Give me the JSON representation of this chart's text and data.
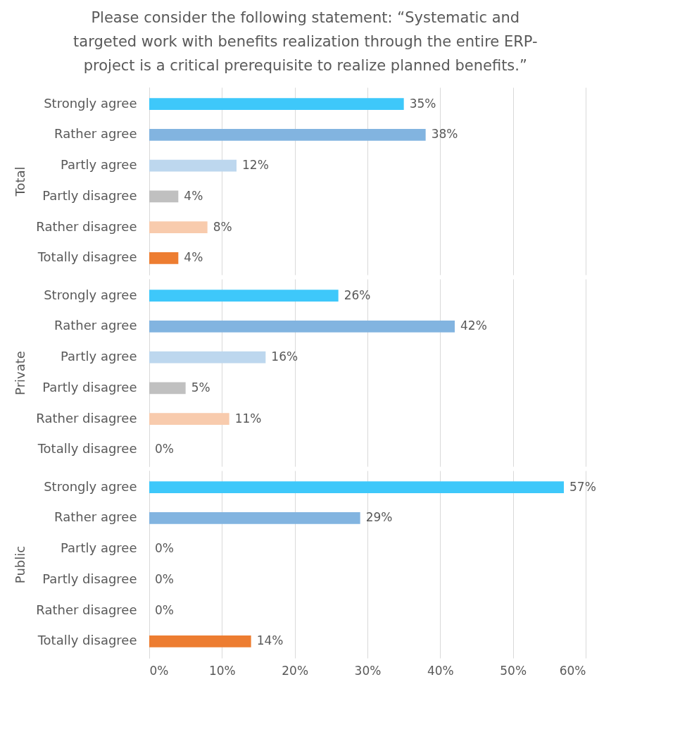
{
  "chart_data": [
    {
      "type": "bar",
      "orientation": "horizontal",
      "title": "Please consider the following statement: “Systematic and targeted work with benefits realization through the entire ERP-project is a critical prerequisite to realize planned benefits.”",
      "ylabel": "Total",
      "categories": [
        "Strongly agree",
        "Rather agree",
        "Partly agree",
        "Partly disagree",
        "Rather disagree",
        "Totally disagree"
      ],
      "values": [
        35,
        38,
        12,
        4,
        8,
        4
      ],
      "value_labels": [
        "35%",
        "38%",
        "12%",
        "4%",
        "8%",
        "4%"
      ],
      "colors": [
        "#3ec8fa",
        "#82b4e0",
        "#bdd7ee",
        "#c0c0c0",
        "#f8cbad",
        "#ed7d31"
      ],
      "xlim": [
        0,
        60
      ],
      "xticks": [
        {
          "value": 0,
          "label": null
        },
        {
          "value": 10,
          "label": null
        },
        {
          "value": 20,
          "label": null
        },
        {
          "value": 30,
          "label": null
        },
        {
          "value": 40,
          "label": null
        },
        {
          "value": 50,
          "label": null
        },
        {
          "value": 60,
          "label": null
        }
      ],
      "grid": "x",
      "tick_labels": "y"
    },
    {
      "type": "bar",
      "orientation": "horizontal",
      "ylabel": "Private",
      "categories": [
        "Strongly agree",
        "Rather agree",
        "Partly agree",
        "Partly disagree",
        "Rather disagree",
        "Totally disagree"
      ],
      "values": [
        26,
        42,
        16,
        5,
        11,
        0
      ],
      "value_labels": [
        "26%",
        "42%",
        "16%",
        "5%",
        "11%",
        "0%"
      ],
      "colors": [
        "#3ec8fa",
        "#82b4e0",
        "#bdd7ee",
        "#c0c0c0",
        "#f8cbad",
        "#ed7d31"
      ],
      "xlim": [
        0,
        60
      ],
      "xticks": [
        {
          "value": 0,
          "label": null
        },
        {
          "value": 10,
          "label": null
        },
        {
          "value": 20,
          "label": null
        },
        {
          "value": 30,
          "label": null
        },
        {
          "value": 40,
          "label": null
        },
        {
          "value": 50,
          "label": null
        },
        {
          "value": 60,
          "label": null
        }
      ],
      "grid": "x",
      "tick_labels": "y"
    },
    {
      "type": "bar",
      "orientation": "horizontal",
      "ylabel": "Public",
      "categories": [
        "Strongly agree",
        "Rather agree",
        "Partly agree",
        "Partly disagree",
        "Rather disagree",
        "Totally disagree"
      ],
      "values": [
        57,
        29,
        0,
        0,
        0,
        14
      ],
      "value_labels": [
        "57%",
        "29%",
        "0%",
        "0%",
        "0%",
        "14%"
      ],
      "colors": [
        "#3ec8fa",
        "#82b4e0",
        "#bdd7ee",
        "#c0c0c0",
        "#f8cbad",
        "#ed7d31"
      ],
      "xlim": [
        0,
        60
      ],
      "xticks": [
        {
          "value": 0,
          "label": "0%"
        },
        {
          "value": 10,
          "label": "10%"
        },
        {
          "value": 20,
          "label": "20%"
        },
        {
          "value": 30,
          "label": "30%"
        },
        {
          "value": 40,
          "label": "40%"
        },
        {
          "value": 50,
          "label": "50%"
        },
        {
          "value": 60,
          "label": "60%"
        }
      ],
      "grid": "x"
    }
  ]
}
